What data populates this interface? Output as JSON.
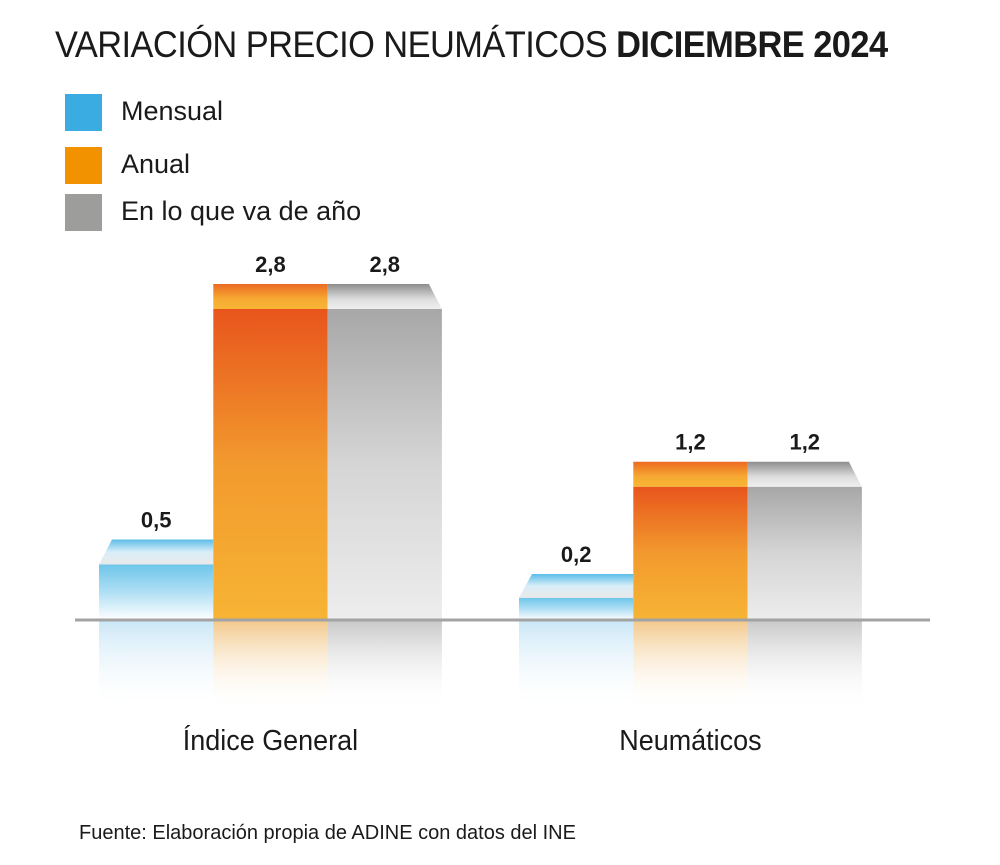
{
  "title": {
    "regular": "VARIACIÓN PRECIO NEUMÁTICOS ",
    "bold": "DICIEMBRE 2024"
  },
  "legend": [
    {
      "label": "Mensual",
      "color": "#3AACE2"
    },
    {
      "label": "Anual",
      "color": "#F39200"
    },
    {
      "label": "En lo que va de año",
      "color": "#9D9D9C"
    }
  ],
  "source": "Fuente: Elaboración propia de ADINE con datos del INE",
  "chart_data": {
    "type": "bar",
    "title": "VARIACIÓN PRECIO NEUMÁTICOS DICIEMBRE 2024",
    "categories": [
      "Índice General",
      "Neumáticos"
    ],
    "series": [
      {
        "name": "Mensual",
        "values": [
          0.5,
          0.2
        ],
        "labels": [
          "0,5",
          "0,2"
        ]
      },
      {
        "name": "Anual",
        "values": [
          2.8,
          1.2
        ],
        "labels": [
          "2,8",
          "1,2"
        ]
      },
      {
        "name": "En lo que va de año",
        "values": [
          2.8,
          1.2
        ],
        "labels": [
          "2,8",
          "1,2"
        ]
      }
    ],
    "xlabel": "",
    "ylabel": "",
    "ylim": [
      0,
      2.8
    ],
    "grid": false,
    "legend_position": "top-left",
    "value_format": "comma-decimal"
  }
}
